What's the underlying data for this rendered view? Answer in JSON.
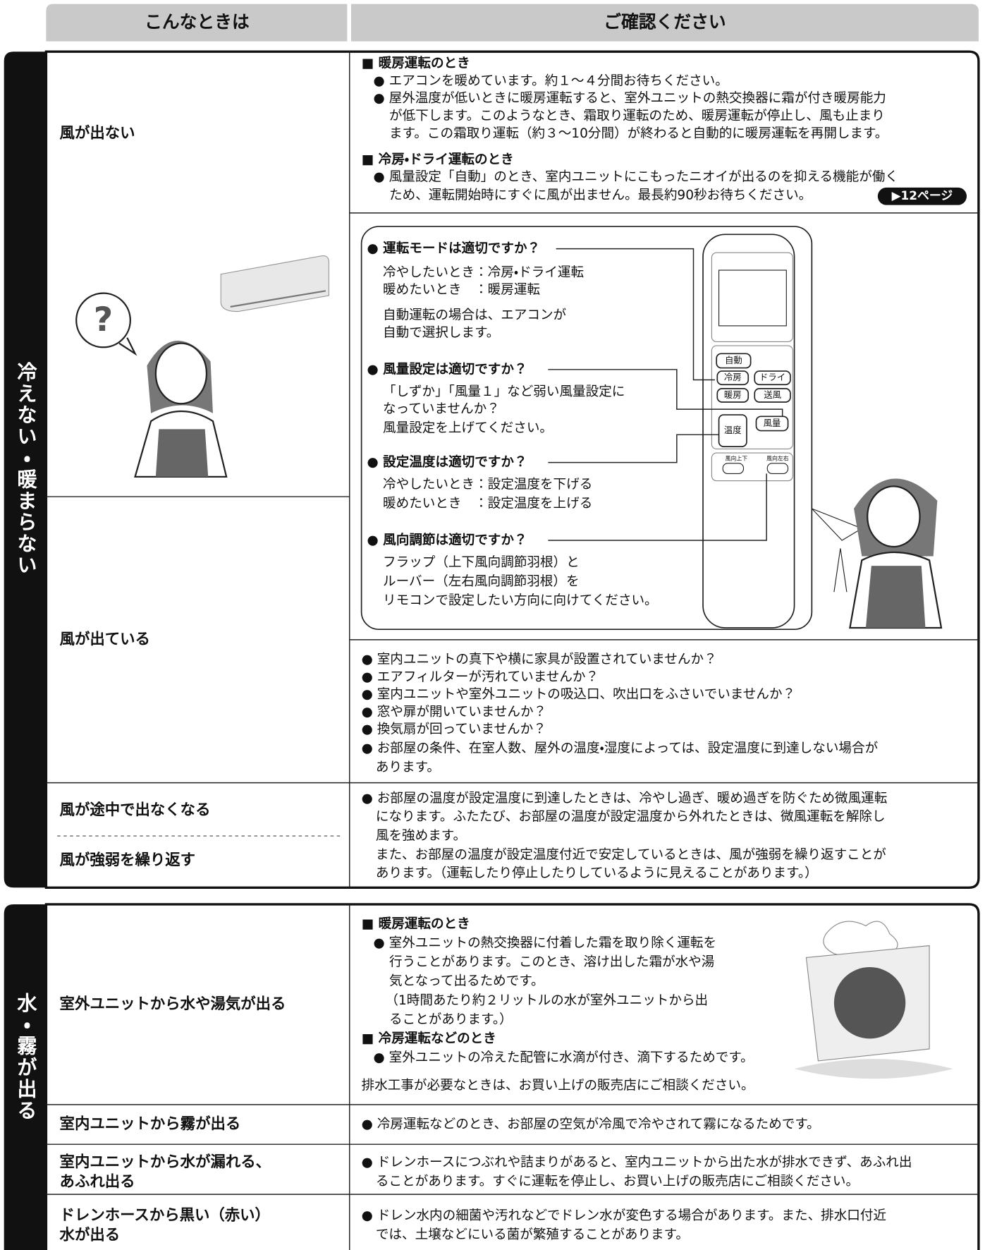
{
  "header": {
    "condition": "こんなときは",
    "check": "ご確認ください"
  },
  "section1": {
    "label": "冷えない・暖まらない",
    "no_air": {
      "condition": "風が出ない",
      "lines": [
        "■ 暖房運転のとき",
        "● エアコンを暖めています。約１～４分間お待ちください。",
        "● 屋外温度が低いときに暖房運転すると、室外ユニットの熱交換器に霜が付き暖房能力",
        "が低下します。このようなとき、霜取り運転のため、暖房運転が停止し、風も止まり",
        "ます。この霜取り運転（約３～10分間）が終わると自動的に暖房運転を再開します。",
        "■ 冷房・ドライ運転のとき",
        "● 風量設定「自動」のとき、室内ユニットにこもったニオイが出るのを抑える機能が働く",
        "ため、運転開始時にすぐに風が出ません。最長約90秒お待ちください。"
      ],
      "page_ref": "▶12ページ"
    },
    "question_mark": "?",
    "remote_checks": [
      {
        "heading": "● 運転モードは適切ですか？",
        "lines": [
          "冷やしたいとき：冷房・ドライ運転",
          "暖めたいとき　：暖房運転",
          "自動運転の場合は、エアコンが",
          "自動で選択します。"
        ]
      },
      {
        "heading": "● 風量設定は適切ですか？",
        "lines": [
          "「しずか」「風量１」など弱い風量設定に",
          "なっていませんか？",
          "風量設定を上げてください。"
        ]
      },
      {
        "heading": "● 設定温度は適切ですか？",
        "lines": [
          "冷やしたいとき：設定温度を下げる",
          "暖めたいとき　：設定温度を上げる"
        ]
      },
      {
        "heading": "● 風向調節は適切ですか？",
        "lines": [
          "フラップ（上下風向調節羽根）と",
          "ルーバー（左右風向調節羽根）を",
          "リモコンで設定したい方向に向けてください。"
        ]
      }
    ],
    "remote_buttons": [
      "自動",
      "冷房",
      "ドライ",
      "暖房",
      "送風",
      "温度",
      "風量",
      "風向上下",
      "風向左右"
    ],
    "air_flowing": {
      "condition": "風が出ている",
      "lines": [
        "● 室内ユニットの真下や横に家具が設置されていませんか？",
        "● エアフィルターが汚れていませんか？",
        "● 室内ユニットや室外ユニットの吸込口、吹出口をふさいでいませんか？",
        "● 窓や扉が開いていませんか？",
        "● 換気扇が回っていませんか？",
        "● お部屋の条件、在室人数、屋外の温度・湿度によっては、設定温度に到達しない場合が",
        "あります。"
      ]
    },
    "weak_air": {
      "conditions": [
        "風が途中で出なくなる",
        "風が強弱を繰り返す"
      ],
      "lines": [
        "● お部屋の温度が設定温度に到達したときは、冷やし過ぎ、暖め過ぎを防ぐため微風運転",
        "になります。ふたたび、お部屋の温度が設定温度から外れたときは、微風運転を解除し",
        "風を強めます。",
        "また、お部屋の温度が設定温度付近で安定しているときは、風が強弱を繰り返すことが",
        "あります。（運転したり停止したりしているように見えることがあります。）"
      ]
    }
  },
  "section2": {
    "label": "水・霧が出る",
    "rows": [
      {
        "condition": [
          "室外ユニットから水や湯気が出る"
        ],
        "lines": [
          "■ 暖房運転のとき",
          "● 室外ユニットの熱交換器に付着した霜を取り除く運転を",
          "行うことがあります。このとき、溶け出した霜が水や湯",
          "気となって出るためです。",
          "（1時間あたり約２リットルの水が室外ユニットから出",
          "ることがあります。）",
          "■ 冷房運転などのとき",
          "● 室外ユニットの冷えた配管に水滴が付き、滴下するためです。",
          "排水工事が必要なときは、お買い上げの販売店にご相談ください。"
        ]
      },
      {
        "condition": [
          "室内ユニットから霧が出る"
        ],
        "lines": [
          "● 冷房運転などのとき、お部屋の空気が冷風で冷やされて霧になるためです。"
        ]
      },
      {
        "condition": [
          "室内ユニットから水が漏れる、",
          "あふれ出る"
        ],
        "lines": [
          "● ドレンホースにつぶれや詰まりがあると、室内ユニットから出た水が排水できず、あふれ出",
          "ることがあります。すぐに運転を停止し、お買い上げの販売店にご相談ください。"
        ]
      },
      {
        "condition": [
          "ドレンホースから黒い（赤い）",
          "水が出る"
        ],
        "lines": [
          "● ドレン水内の細菌や汚れなどでドレン水が変色する場合があります。また、排水口付近",
          "では、土壌などにいる菌が繁殖することがあります。"
        ]
      }
    ]
  }
}
